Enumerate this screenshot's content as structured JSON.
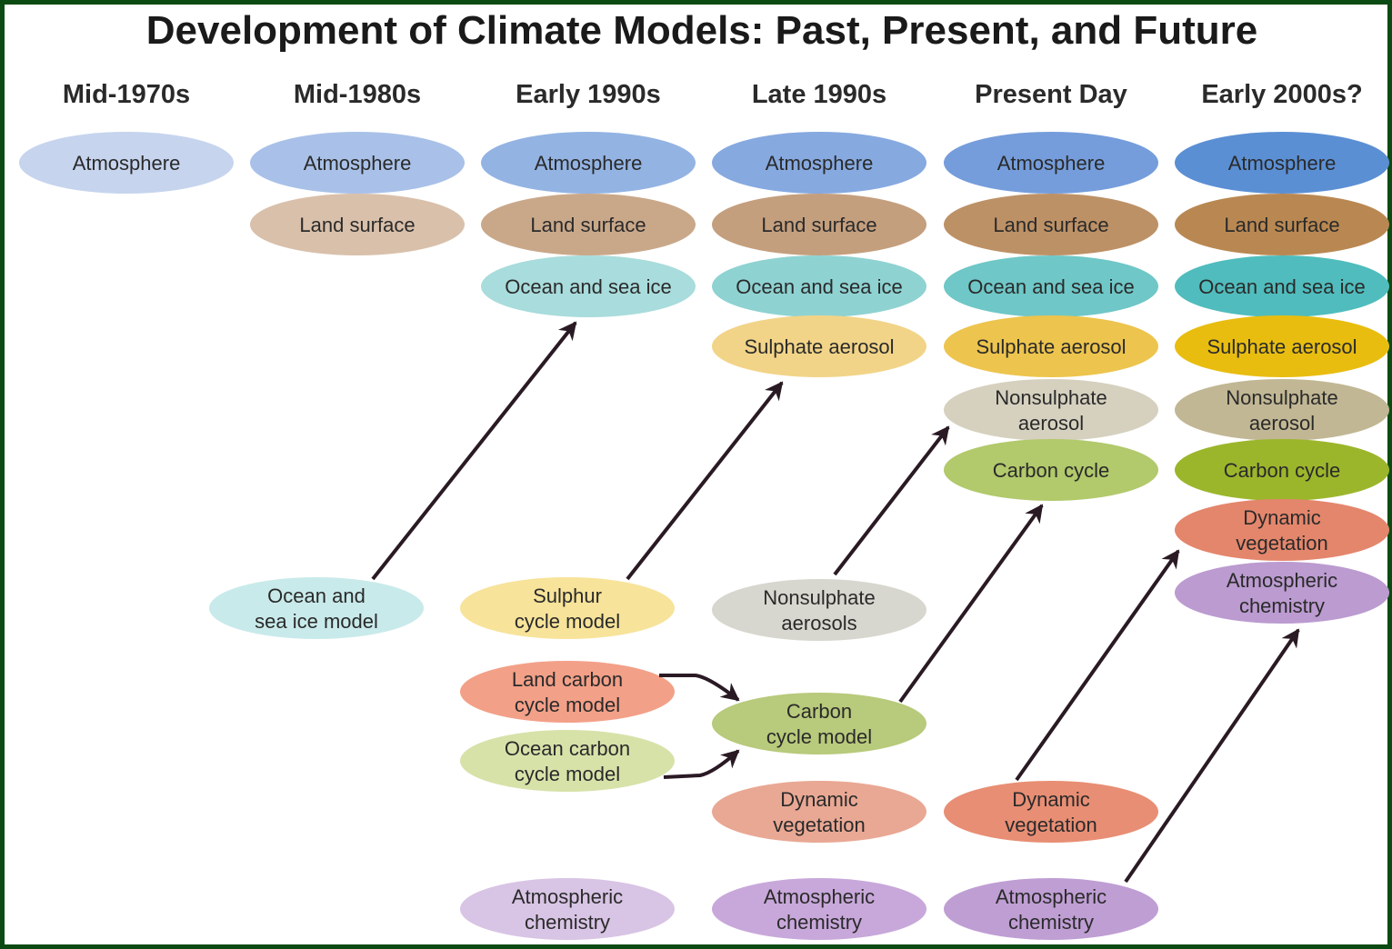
{
  "title": "Development of Climate Models: Past, Present, and Future",
  "columns": [
    {
      "heading": "Mid-1970s",
      "components": [
        {
          "lines": [
            "Atmosphere"
          ],
          "color": "#c6d4ee"
        }
      ]
    },
    {
      "heading": "Mid-1980s",
      "components": [
        {
          "lines": [
            "Atmosphere"
          ],
          "color": "#a9c1e8"
        },
        {
          "lines": [
            "Land surface"
          ],
          "color": "#d9c0aa"
        }
      ]
    },
    {
      "heading": "Early 1990s",
      "components": [
        {
          "lines": [
            "Atmosphere"
          ],
          "color": "#93b3e3"
        },
        {
          "lines": [
            "Land surface"
          ],
          "color": "#c9a88a"
        },
        {
          "lines": [
            "Ocean and sea ice"
          ],
          "color": "#a9dcdc"
        }
      ]
    },
    {
      "heading": "Late 1990s",
      "components": [
        {
          "lines": [
            "Atmosphere"
          ],
          "color": "#86a9e0"
        },
        {
          "lines": [
            "Land surface"
          ],
          "color": "#c49f7e"
        },
        {
          "lines": [
            "Ocean and sea ice"
          ],
          "color": "#8fd2d2"
        },
        {
          "lines": [
            "Sulphate aerosol"
          ],
          "color": "#f2d488"
        }
      ]
    },
    {
      "heading": "Present Day",
      "components": [
        {
          "lines": [
            "Atmosphere"
          ],
          "color": "#759ddb"
        },
        {
          "lines": [
            "Land surface"
          ],
          "color": "#bd9166"
        },
        {
          "lines": [
            "Ocean and sea ice"
          ],
          "color": "#6fc7c7"
        },
        {
          "lines": [
            "Sulphate aerosol"
          ],
          "color": "#edc44d"
        },
        {
          "lines": [
            "Nonsulphate",
            "aerosol"
          ],
          "color": "#d6d1bf"
        },
        {
          "lines": [
            "Carbon cycle"
          ],
          "color": "#b2c96c"
        }
      ]
    },
    {
      "heading": "Early 2000s?",
      "components": [
        {
          "lines": [
            "Atmosphere"
          ],
          "color": "#5b8fd4"
        },
        {
          "lines": [
            "Land surface"
          ],
          "color": "#b98852"
        },
        {
          "lines": [
            "Ocean and sea ice"
          ],
          "color": "#50bcbd"
        },
        {
          "lines": [
            "Sulphate aerosol"
          ],
          "color": "#e8bd10"
        },
        {
          "lines": [
            "Nonsulphate",
            "aerosol"
          ],
          "color": "#c1b794"
        },
        {
          "lines": [
            "Carbon cycle"
          ],
          "color": "#9cb62c"
        },
        {
          "lines": [
            "Dynamic",
            "vegetation"
          ],
          "color": "#e4866c"
        },
        {
          "lines": [
            "Atmospheric",
            "chemistry"
          ],
          "color": "#bb9bd0"
        }
      ]
    }
  ],
  "models": [
    {
      "lines": [
        "Ocean and",
        "sea ice model"
      ],
      "color": "#c9eaea"
    },
    {
      "lines": [
        "Sulphur",
        "cycle model"
      ],
      "color": "#f7e39a"
    },
    {
      "lines": [
        "Nonsulphate",
        "aerosols"
      ],
      "color": "#d8d7cf"
    },
    {
      "lines": [
        "Land carbon",
        "cycle model"
      ],
      "color": "#f3a088"
    },
    {
      "lines": [
        "Ocean carbon",
        "cycle model"
      ],
      "color": "#d7e2a9"
    },
    {
      "lines": [
        "Carbon",
        "cycle model"
      ],
      "color": "#b8ca7b"
    },
    {
      "lines": [
        "Dynamic",
        "vegetation"
      ],
      "color": "#e9a894"
    },
    {
      "lines": [
        "Dynamic",
        "vegetation"
      ],
      "color": "#e88e74"
    },
    {
      "lines": [
        "Atmospheric",
        "chemistry"
      ],
      "color": "#d8c4e4"
    },
    {
      "lines": [
        "Atmospheric",
        "chemistry"
      ],
      "color": "#c8a8da"
    },
    {
      "lines": [
        "Atmospheric",
        "chemistry"
      ],
      "color": "#bf9ed4"
    }
  ]
}
